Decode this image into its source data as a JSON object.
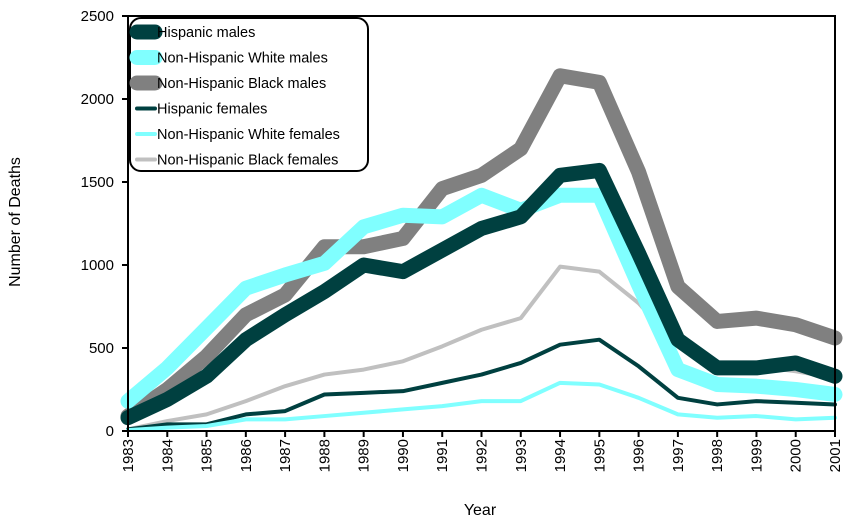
{
  "chart_data": {
    "type": "line",
    "xlabel": "Year",
    "ylabel": "Number of Deaths",
    "x": [
      1983,
      1984,
      1985,
      1986,
      1987,
      1988,
      1989,
      1990,
      1991,
      1992,
      1993,
      1994,
      1995,
      1996,
      1997,
      1998,
      1999,
      2000,
      2001
    ],
    "x_tick_labels": [
      "1983",
      "1984",
      "1985",
      "1986",
      "1987",
      "1988",
      "1989",
      "1990",
      "1991",
      "1992",
      "1993",
      "1994",
      "1995",
      "1996",
      "1997",
      "1998",
      "1999",
      "2000",
      "2001"
    ],
    "ylim": [
      0,
      2500
    ],
    "y_ticks": [
      0,
      500,
      1000,
      1500,
      2000,
      2500
    ],
    "y_tick_labels": [
      "0",
      "500",
      "1000",
      "1500",
      "2000",
      "2500"
    ],
    "grid": false,
    "legend_position": "top-left",
    "series": [
      {
        "name": "Non-Hispanic Black males",
        "color": "#808080",
        "weight": "heavy",
        "values": [
          90,
          250,
          450,
          700,
          820,
          1110,
          1110,
          1160,
          1460,
          1540,
          1700,
          2140,
          2100,
          1560,
          870,
          660,
          680,
          640,
          560
        ]
      },
      {
        "name": "Non-Hispanic White males",
        "color": "#80FFFF",
        "weight": "heavy",
        "values": [
          180,
          380,
          620,
          860,
          940,
          1010,
          1230,
          1300,
          1290,
          1420,
          1330,
          1420,
          1420,
          880,
          370,
          280,
          270,
          250,
          220
        ]
      },
      {
        "name": "Hispanic males",
        "color": "#004040",
        "weight": "heavy",
        "values": [
          80,
          190,
          330,
          550,
          700,
          840,
          1000,
          960,
          1090,
          1220,
          1290,
          1540,
          1570,
          1070,
          550,
          380,
          380,
          410,
          330
        ]
      },
      {
        "name": "Non-Hispanic Black females",
        "color": "#C0C0C0",
        "weight": "light",
        "values": [
          10,
          60,
          100,
          180,
          270,
          340,
          370,
          420,
          510,
          610,
          680,
          990,
          960,
          770,
          510,
          380,
          390,
          360,
          320
        ]
      },
      {
        "name": "Hispanic females",
        "color": "#004040",
        "weight": "light",
        "values": [
          10,
          40,
          40,
          100,
          120,
          220,
          230,
          240,
          290,
          340,
          410,
          520,
          550,
          390,
          200,
          160,
          180,
          170,
          160
        ]
      },
      {
        "name": "Non-Hispanic White females",
        "color": "#80FFFF",
        "weight": "light",
        "values": [
          5,
          20,
          30,
          70,
          70,
          90,
          110,
          130,
          150,
          180,
          180,
          290,
          280,
          200,
          100,
          80,
          90,
          70,
          80
        ]
      }
    ],
    "legend_order": [
      "Hispanic males",
      "Non-Hispanic White males",
      "Non-Hispanic Black males",
      "Hispanic females",
      "Non-Hispanic White females",
      "Non-Hispanic Black females"
    ]
  }
}
